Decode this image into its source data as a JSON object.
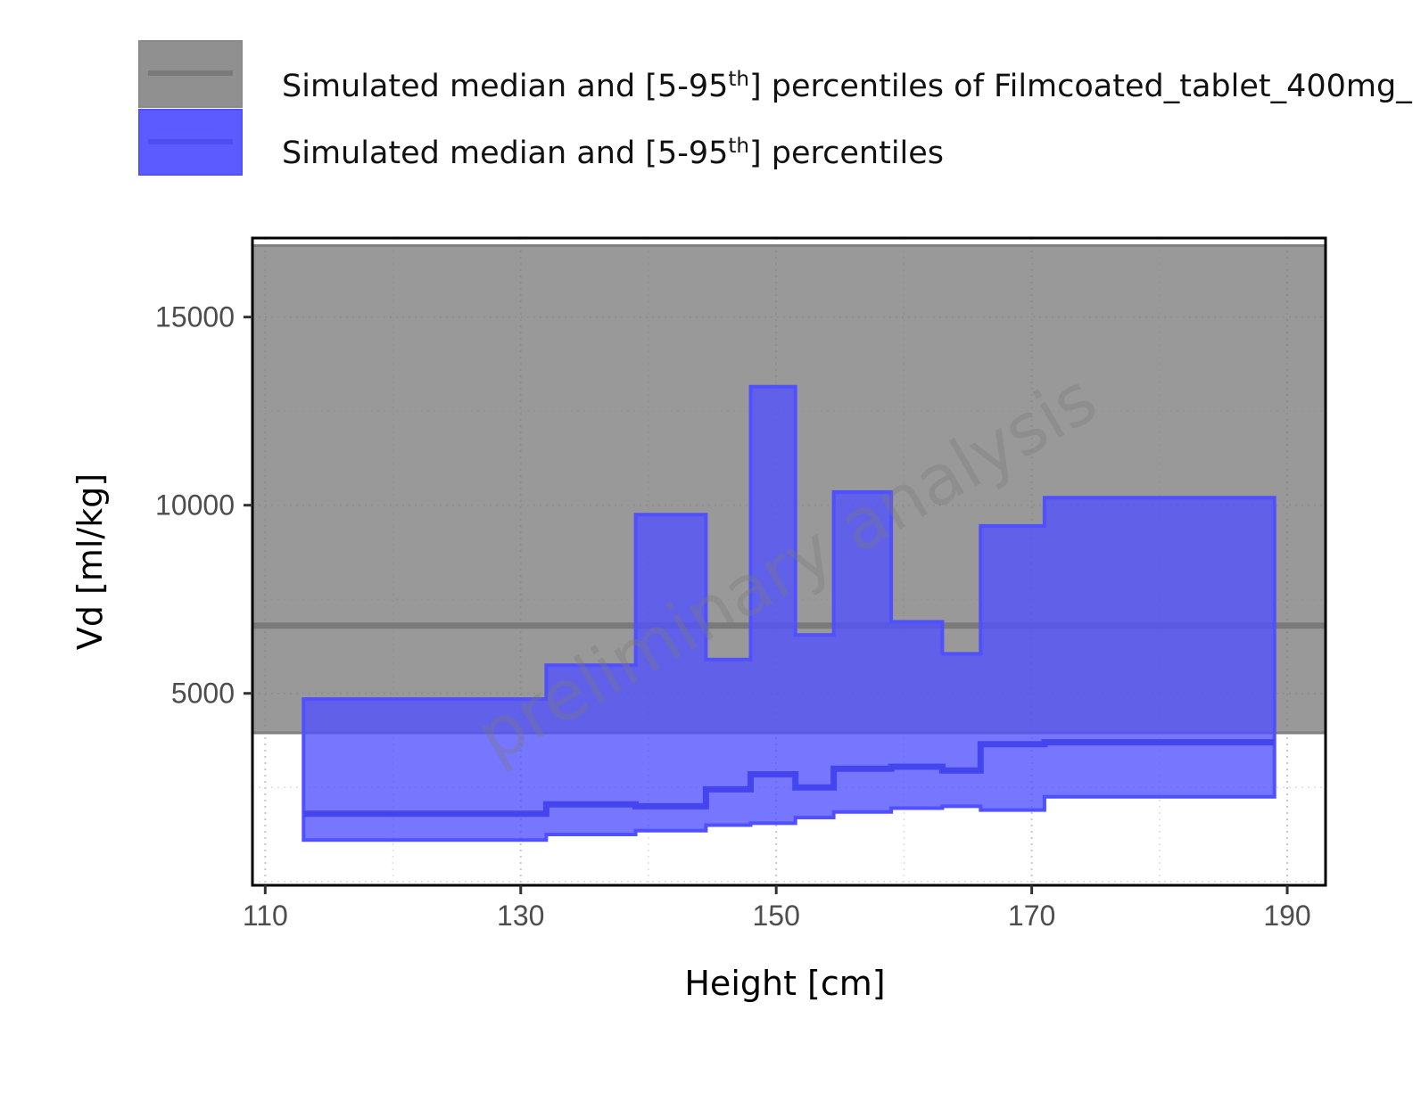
{
  "chart_data": {
    "type": "area",
    "xlabel": "Height [cm]",
    "ylabel": "Vd [ml/kg]",
    "xlim": [
      109,
      193
    ],
    "ylim": [
      -100,
      17100
    ],
    "x_ticks": [
      110,
      130,
      150,
      170,
      190
    ],
    "y_ticks": [
      5000,
      10000,
      15000
    ],
    "grid": "dotted, major and minor",
    "watermark": "preliminary analysis",
    "legend_position": "top-left",
    "series": [
      {
        "name_prefix": "Simulated median and [5-95",
        "name_sup": "th",
        "name_suffix": "] percentiles of Filmcoated_tablet_400mg_",
        "color": "#808080",
        "kind": "constant band",
        "median": 6800,
        "p5": 3950,
        "p95": 16900
      },
      {
        "name_prefix": "Simulated median and [5-95",
        "name_sup": "th",
        "name_suffix": "] percentiles",
        "color": "#5050ff",
        "kind": "step band",
        "x_edges": [
          113,
          132,
          139,
          144.5,
          148,
          151.5,
          154.5,
          159,
          163,
          166,
          171,
          189
        ],
        "median": [
          1800,
          2050,
          2000,
          2450,
          2850,
          2500,
          3000,
          3050,
          2950,
          3650,
          3700
        ],
        "p5": [
          1100,
          1250,
          1350,
          1500,
          1550,
          1700,
          1850,
          1950,
          2000,
          1900,
          2250
        ],
        "p95": [
          4850,
          5750,
          9750,
          5900,
          13150,
          6550,
          10350,
          6900,
          6050,
          9450,
          10200
        ]
      }
    ]
  }
}
